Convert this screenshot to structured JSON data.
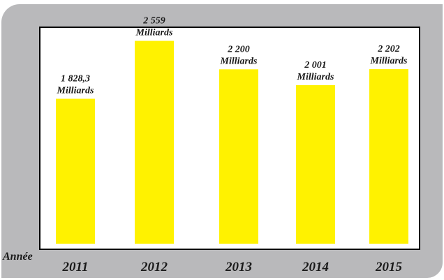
{
  "colors": {
    "panel": "#b9b9bb",
    "bar": "#fff200",
    "frame": "#000000",
    "text": "#1a1a1a"
  },
  "chart_data": {
    "type": "bar",
    "title": "",
    "xlabel": "Année",
    "ylabel": "",
    "categories": [
      "2011",
      "2012",
      "2013",
      "2014",
      "2015"
    ],
    "values": [
      1828.3,
      2559,
      2200,
      2001,
      2202
    ],
    "data_labels": [
      [
        "1 828,3",
        "Milliards"
      ],
      [
        "2 559",
        "Milliards"
      ],
      [
        "2 200",
        "Milliards"
      ],
      [
        "2 001",
        "Milliards"
      ],
      [
        "2 202",
        "Milliards"
      ]
    ],
    "ylim": [
      0,
      2740
    ],
    "grid": false,
    "legend": "none"
  }
}
